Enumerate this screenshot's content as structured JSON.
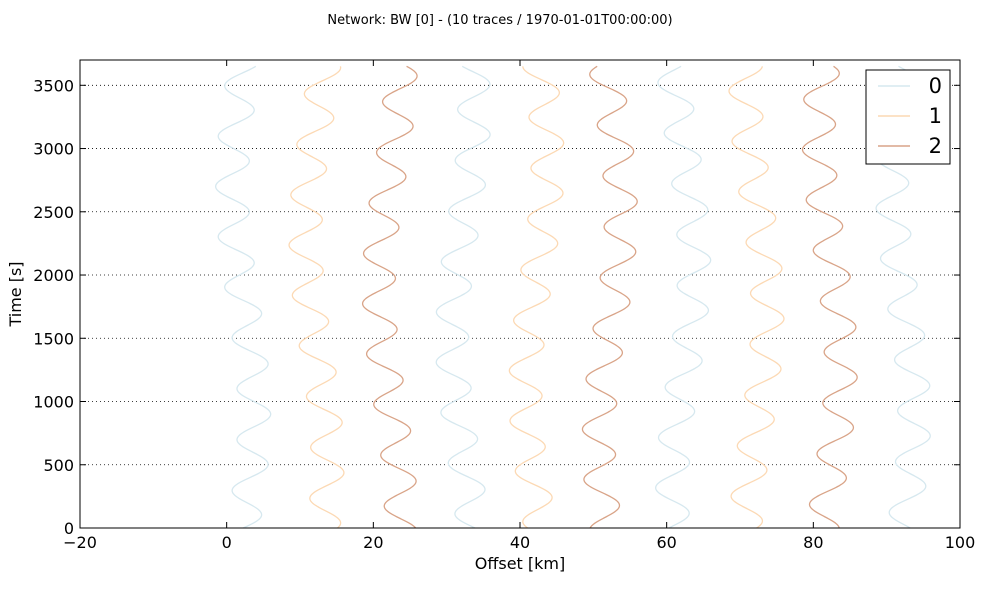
{
  "chart_data": {
    "type": "line",
    "title": "Network: BW [0] - (10 traces / 1970-01-01T00:00:00)",
    "xlabel": "Offset [km]",
    "ylabel": "Time [s]",
    "xlim": [
      -20,
      100
    ],
    "ylim": [
      0,
      3700
    ],
    "xticks": [
      -20,
      0,
      20,
      40,
      60,
      80,
      100
    ],
    "xtick_labels": [
      "−20",
      "0",
      "20",
      "40",
      "60",
      "80",
      "100"
    ],
    "yticks": [
      0,
      500,
      1000,
      1500,
      2000,
      2500,
      3000,
      3500
    ],
    "ytick_labels": [
      "0",
      "500",
      "1000",
      "1500",
      "2000",
      "2500",
      "3000",
      "3500"
    ],
    "grid": "horizontal dotted",
    "legend_placement": "top-right",
    "legend": [
      {
        "label": "0",
        "color": "#d6e8ef"
      },
      {
        "label": "1",
        "color": "#fcd9b4"
      },
      {
        "label": "2",
        "color": "#d9a488"
      }
    ],
    "trace_time_range": [
      0,
      3650
    ],
    "traces": [
      {
        "offset": 0,
        "group": "0",
        "swing": 4.5,
        "period": 400
      },
      {
        "offset": 10,
        "group": "1",
        "swing": 4.5,
        "period": 400
      },
      {
        "offset": 20,
        "group": "2",
        "swing": 4.5,
        "period": 400
      },
      {
        "offset": 30,
        "group": "0",
        "swing": 4.5,
        "period": 400
      },
      {
        "offset": 40,
        "group": "1",
        "swing": 4.5,
        "period": 400
      },
      {
        "offset": 50,
        "group": "2",
        "swing": 4.5,
        "period": 400
      },
      {
        "offset": 60,
        "group": "0",
        "swing": 4.5,
        "period": 400
      },
      {
        "offset": 70,
        "group": "1",
        "swing": 4.5,
        "period": 400
      },
      {
        "offset": 80,
        "group": "2",
        "swing": 4.5,
        "period": 400
      },
      {
        "offset": 90,
        "group": "0",
        "swing": 4.5,
        "period": 400
      }
    ]
  }
}
